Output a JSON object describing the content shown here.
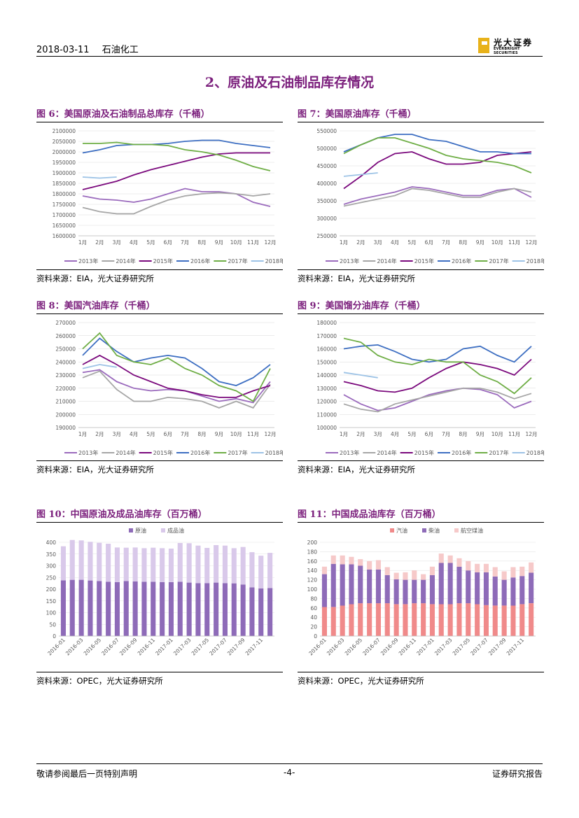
{
  "header": {
    "date": "2018-03-11",
    "industry": "石油化工",
    "logo_cn": "光大证券",
    "logo_en": "EVERBRIGHT SECURITIES"
  },
  "section_title": "2、原油及石油制品库存情况",
  "footer": {
    "left": "敬请参阅最后一页特别声明",
    "page": "-4-",
    "right": "证券研究报告"
  },
  "chart_data": [
    {
      "id": "fig6",
      "type": "line",
      "title": "图 6：美国原油及石油制品总库存（千桶）",
      "source": "资料来源：EIA，光大证券研究所",
      "ylim": [
        1600000,
        2100000
      ],
      "yticks": [
        "1600000",
        "1650000",
        "1700000",
        "1750000",
        "1800000",
        "1850000",
        "1900000",
        "1950000",
        "2000000",
        "2050000",
        "2100000"
      ],
      "xticks": [
        "1月",
        "2月",
        "3月",
        "4月",
        "5月",
        "6月",
        "7月",
        "8月",
        "9月",
        "10月",
        "11月",
        "12月"
      ],
      "series": [
        {
          "name": "2013年",
          "color": "#9b6bbd",
          "values": [
            1790000,
            1775000,
            1770000,
            1760000,
            1775000,
            1800000,
            1825000,
            1810000,
            1810000,
            1800000,
            1760000,
            1740000
          ]
        },
        {
          "name": "2014年",
          "color": "#a6a6a6",
          "values": [
            1735000,
            1715000,
            1705000,
            1705000,
            1740000,
            1770000,
            1790000,
            1800000,
            1805000,
            1800000,
            1790000,
            1800000
          ]
        },
        {
          "name": "2015年",
          "color": "#7b0a7d",
          "values": [
            1820000,
            1840000,
            1860000,
            1890000,
            1915000,
            1935000,
            1955000,
            1975000,
            1990000,
            1995000,
            1995000,
            1995000
          ]
        },
        {
          "name": "2016年",
          "color": "#3e6fc2",
          "values": [
            1995000,
            2010000,
            2030000,
            2035000,
            2035000,
            2040000,
            2050000,
            2055000,
            2055000,
            2040000,
            2030000,
            2020000
          ]
        },
        {
          "name": "2017年",
          "color": "#6fae46",
          "values": [
            2040000,
            2040000,
            2045000,
            2035000,
            2035000,
            2030000,
            2010000,
            2000000,
            1985000,
            1960000,
            1930000,
            1910000
          ]
        },
        {
          "name": "2018年",
          "color": "#9dc3e6",
          "values": [
            1880000,
            1875000,
            1880000,
            null,
            null,
            null,
            null,
            null,
            null,
            null,
            null,
            null
          ]
        }
      ]
    },
    {
      "id": "fig7",
      "type": "line",
      "title": "图 7：美国原油库存（千桶）",
      "source": "资料来源：EIA，光大证券研究所",
      "ylim": [
        250000,
        550000
      ],
      "yticks": [
        "250000",
        "300000",
        "350000",
        "400000",
        "450000",
        "500000",
        "550000"
      ],
      "xticks": [
        "1月",
        "2月",
        "3月",
        "4月",
        "5月",
        "6月",
        "7月",
        "8月",
        "9月",
        "10月",
        "11月",
        "12月"
      ],
      "series": [
        {
          "name": "2013年",
          "color": "#9b6bbd",
          "values": [
            340000,
            355000,
            365000,
            375000,
            390000,
            385000,
            375000,
            365000,
            365000,
            380000,
            385000,
            360000
          ]
        },
        {
          "name": "2014年",
          "color": "#a6a6a6",
          "values": [
            335000,
            345000,
            355000,
            365000,
            385000,
            380000,
            370000,
            360000,
            360000,
            375000,
            385000,
            375000
          ]
        },
        {
          "name": "2015年",
          "color": "#7b0a7d",
          "values": [
            385000,
            420000,
            460000,
            485000,
            490000,
            470000,
            455000,
            455000,
            460000,
            480000,
            485000,
            490000
          ]
        },
        {
          "name": "2016年",
          "color": "#3e6fc2",
          "values": [
            490000,
            510000,
            530000,
            540000,
            540000,
            525000,
            520000,
            505000,
            490000,
            490000,
            485000,
            485000
          ]
        },
        {
          "name": "2017年",
          "color": "#6fae46",
          "values": [
            485000,
            510000,
            530000,
            530000,
            515000,
            500000,
            480000,
            470000,
            465000,
            460000,
            450000,
            430000
          ]
        },
        {
          "name": "2018年",
          "color": "#9dc3e6",
          "values": [
            420000,
            425000,
            430000,
            null,
            null,
            null,
            null,
            null,
            null,
            null,
            null,
            null
          ]
        }
      ]
    },
    {
      "id": "fig8",
      "type": "line",
      "title": "图 8：美国汽油库存（千桶）",
      "source": "资料来源：EIA，光大证券研究所",
      "ylim": [
        190000,
        270000
      ],
      "yticks": [
        "190000",
        "200000",
        "210000",
        "220000",
        "230000",
        "240000",
        "250000",
        "260000",
        "270000"
      ],
      "xticks": [
        "1月",
        "2月",
        "3月",
        "4月",
        "5月",
        "6月",
        "7月",
        "8月",
        "9月",
        "10月",
        "11月",
        "12月"
      ],
      "series": [
        {
          "name": "2013年",
          "color": "#9b6bbd",
          "values": [
            232000,
            234000,
            225000,
            220000,
            218000,
            219000,
            218000,
            214000,
            210000,
            212000,
            209000,
            225000
          ]
        },
        {
          "name": "2014年",
          "color": "#a6a6a6",
          "values": [
            228000,
            233000,
            219000,
            210000,
            210000,
            213000,
            212000,
            210000,
            205000,
            210000,
            205000,
            223000
          ]
        },
        {
          "name": "2015年",
          "color": "#7b0a7d",
          "values": [
            238000,
            245000,
            238000,
            230000,
            225000,
            220000,
            218000,
            215000,
            213000,
            213000,
            218000,
            222000
          ]
        },
        {
          "name": "2016年",
          "color": "#3e6fc2",
          "values": [
            245000,
            258000,
            248000,
            240000,
            243000,
            245000,
            243000,
            235000,
            225000,
            222000,
            228000,
            238000
          ]
        },
        {
          "name": "2017年",
          "color": "#6fae46",
          "values": [
            250000,
            262000,
            245000,
            240000,
            238000,
            243000,
            235000,
            230000,
            222000,
            218000,
            210000,
            235000
          ]
        },
        {
          "name": "2018年",
          "color": "#9dc3e6",
          "values": [
            235000,
            238000,
            236000,
            null,
            null,
            null,
            null,
            null,
            null,
            null,
            null,
            null
          ]
        }
      ]
    },
    {
      "id": "fig9",
      "type": "line",
      "title": "图 9：美国馏分油库存（千桶）",
      "source": "资料来源：EIA，光大证券研究所",
      "ylim": [
        100000,
        180000
      ],
      "yticks": [
        "100000",
        "110000",
        "120000",
        "130000",
        "140000",
        "150000",
        "160000",
        "170000",
        "180000"
      ],
      "xticks": [
        "1月",
        "2月",
        "3月",
        "4月",
        "5月",
        "6月",
        "7月",
        "8月",
        "9月",
        "10月",
        "11月",
        "12月"
      ],
      "series": [
        {
          "name": "2013年",
          "color": "#9b6bbd",
          "values": [
            125000,
            118000,
            113000,
            115000,
            120000,
            125000,
            128000,
            130000,
            129000,
            125000,
            115000,
            120000
          ]
        },
        {
          "name": "2014年",
          "color": "#a6a6a6",
          "values": [
            118000,
            114000,
            112000,
            118000,
            121000,
            124000,
            127000,
            130000,
            130000,
            127000,
            122000,
            126000
          ]
        },
        {
          "name": "2015年",
          "color": "#7b0a7d",
          "values": [
            135000,
            132000,
            128000,
            127000,
            130000,
            138000,
            145000,
            150000,
            148000,
            145000,
            140000,
            152000
          ]
        },
        {
          "name": "2016年",
          "color": "#3e6fc2",
          "values": [
            160000,
            162000,
            163000,
            158000,
            152000,
            150000,
            152000,
            160000,
            162000,
            155000,
            150000,
            162000
          ]
        },
        {
          "name": "2017年",
          "color": "#6fae46",
          "values": [
            168000,
            165000,
            155000,
            150000,
            148000,
            152000,
            150000,
            150000,
            140000,
            135000,
            126000,
            138000
          ]
        },
        {
          "name": "2018年",
          "color": "#9dc3e6",
          "values": [
            142000,
            140000,
            138000,
            null,
            null,
            null,
            null,
            null,
            null,
            null,
            null,
            null
          ]
        }
      ]
    },
    {
      "id": "fig10",
      "type": "bar",
      "title": "图 10：中国原油及成品油库存（百万桶）",
      "source": "资料来源：OPEC，光大证券研究所",
      "ylim": [
        0,
        400
      ],
      "yticks": [
        "0",
        "50",
        "100",
        "150",
        "200",
        "250",
        "300",
        "350",
        "400"
      ],
      "legend": [
        "原油",
        "成品油"
      ],
      "colors": [
        "#8e6bb8",
        "#d9c9ea"
      ],
      "stacked": true,
      "xticks": [
        "2016-01",
        "2016-03",
        "2016-05",
        "2016-07",
        "2016-09",
        "2016-11",
        "2017-01",
        "2017-03",
        "2017-05",
        "2017-07",
        "2017-09",
        "2017-11"
      ],
      "series": [
        {
          "name": "原油",
          "values": [
            238,
            240,
            240,
            237,
            235,
            232,
            230,
            235,
            233,
            232,
            232,
            230,
            230,
            232,
            228,
            226,
            226,
            228,
            226,
            225,
            220,
            208,
            203,
            205
          ]
        },
        {
          "name": "成品油",
          "values": [
            145,
            170,
            168,
            165,
            163,
            162,
            148,
            142,
            145,
            143,
            145,
            145,
            143,
            165,
            168,
            160,
            150,
            160,
            160,
            150,
            160,
            150,
            140,
            150
          ]
        }
      ]
    },
    {
      "id": "fig11",
      "type": "bar",
      "title": "图 11：中国成品油库存（百万桶）",
      "source": "资料来源：OPEC，光大证券研究所",
      "ylim": [
        0,
        200
      ],
      "yticks": [
        "0",
        "20",
        "40",
        "60",
        "80",
        "100",
        "120",
        "140",
        "160",
        "180",
        "200"
      ],
      "legend": [
        "汽油",
        "柴油",
        "航空煤油"
      ],
      "colors": [
        "#f08a8a",
        "#8e6bb8",
        "#f6c9c9"
      ],
      "stacked": true,
      "xticks": [
        "2016-01",
        "2016-03",
        "2016-05",
        "2016-07",
        "2016-09",
        "2016-11",
        "2017-01",
        "2017-03",
        "2017-05",
        "2017-07",
        "2017-09",
        "2017-11"
      ],
      "series": [
        {
          "name": "汽油",
          "values": [
            62,
            62,
            65,
            68,
            70,
            70,
            70,
            70,
            68,
            68,
            70,
            70,
            68,
            68,
            68,
            70,
            70,
            68,
            66,
            65,
            65,
            65,
            68,
            70
          ]
        },
        {
          "name": "柴油",
          "values": [
            70,
            92,
            88,
            85,
            80,
            72,
            72,
            60,
            53,
            52,
            50,
            50,
            62,
            88,
            88,
            78,
            70,
            68,
            70,
            62,
            55,
            60,
            60,
            65
          ]
        },
        {
          "name": "航空煤油",
          "values": [
            16,
            18,
            19,
            16,
            14,
            18,
            20,
            17,
            14,
            16,
            20,
            12,
            18,
            20,
            16,
            18,
            20,
            18,
            18,
            20,
            18,
            22,
            20,
            22
          ]
        }
      ]
    }
  ]
}
